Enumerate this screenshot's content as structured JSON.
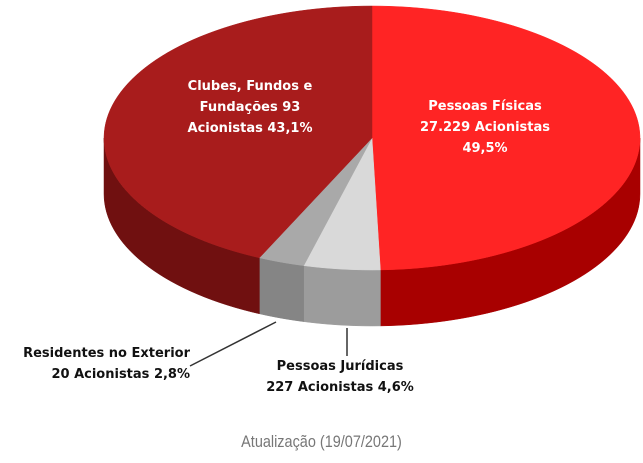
{
  "chart_data": {
    "type": "pie",
    "categories": [
      "Pessoas Físicas",
      "Pessoas Jurídicas",
      "Residentes no Exterior",
      "Clubes, Fundos e Fundações"
    ],
    "values": [
      49.5,
      4.6,
      2.8,
      43.1
    ],
    "value_labels": [
      "49,5%",
      "4,6%",
      "2,8%",
      "43,1%"
    ],
    "counts": [
      "27.229",
      "227",
      "20",
      "93"
    ],
    "count_unit": "Acionistas",
    "colors": [
      "#ff2424",
      "#d9d9d9",
      "#a9a9a9",
      "#a81c1c"
    ],
    "side_colors": [
      "#a80000",
      "#9c9c9c",
      "#858585",
      "#701010"
    ],
    "caption": "Atualização (19/07/2021)"
  }
}
